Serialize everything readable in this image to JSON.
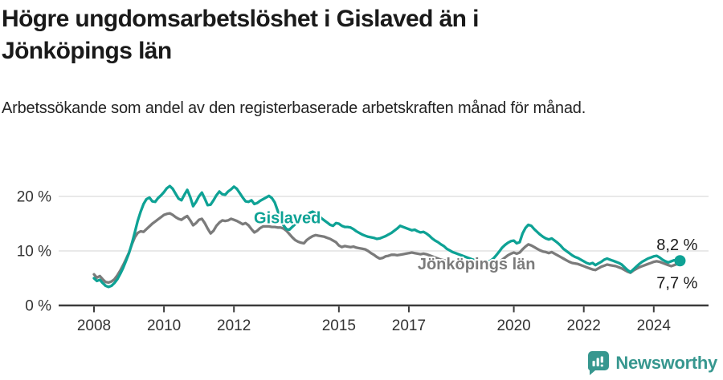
{
  "page": {
    "background": "#ffffff"
  },
  "header": {
    "title": "Högre ungdomsarbetslöshet i Gislaved än i Jönköpings län",
    "subtitle": "Arbetssökande som andel av den registerbaserade arbetskraften månad för månad."
  },
  "footer": {
    "brand": "Newsworthy",
    "logo_icon": "newsworthy-speech-bubble-bar-chart-icon",
    "color": "#37978f"
  },
  "chart_data": {
    "type": "line",
    "title": "",
    "x_start": "2008-01",
    "frequency": "monthly",
    "x_tick_years": [
      2008,
      2010,
      2012,
      2015,
      2017,
      2020,
      2022,
      2024
    ],
    "x_tick_labels": [
      "2008",
      "2010",
      "2012",
      "2015",
      "2017",
      "2020",
      "2022",
      "2024"
    ],
    "y_ticks": [
      {
        "value": 0,
        "label": "0 %"
      },
      {
        "value": 10,
        "label": "10 %"
      },
      {
        "value": 20,
        "label": "20 %"
      }
    ],
    "ylim": [
      0,
      24
    ],
    "grid": "horizontal",
    "grid_color": "#e2e2e2",
    "axis_color": "#3b3b3b",
    "tick_label_color": "#333333",
    "series": [
      {
        "name": "Jönköpings län",
        "color": "#7b7b7b",
        "end_dot": false,
        "values": [
          5.7,
          5.1,
          5.4,
          4.8,
          4.3,
          4.2,
          4.4,
          4.8,
          5.5,
          6.4,
          7.4,
          8.5,
          9.7,
          11.2,
          12.5,
          13.3,
          13.6,
          13.5,
          14.0,
          14.5,
          15.0,
          15.4,
          15.8,
          16.2,
          16.6,
          16.8,
          16.9,
          16.6,
          16.2,
          15.9,
          15.7,
          16.1,
          16.4,
          15.6,
          14.7,
          15.1,
          15.7,
          15.9,
          15.1,
          14.1,
          13.2,
          13.7,
          14.6,
          15.2,
          15.6,
          15.5,
          15.6,
          15.9,
          15.7,
          15.5,
          15.2,
          14.9,
          15.1,
          14.7,
          14.0,
          13.4,
          13.7,
          14.2,
          14.5,
          14.5,
          14.5,
          14.4,
          14.4,
          14.3,
          14.3,
          14.1,
          13.7,
          13.1,
          12.5,
          12.0,
          11.7,
          11.5,
          11.4,
          12.0,
          12.4,
          12.7,
          12.9,
          12.8,
          12.7,
          12.6,
          12.4,
          12.2,
          11.9,
          11.6,
          11.0,
          10.7,
          10.9,
          10.8,
          10.7,
          10.8,
          10.6,
          10.5,
          10.4,
          10.3,
          10.0,
          9.6,
          9.3,
          8.9,
          8.6,
          8.7,
          9.0,
          9.1,
          9.3,
          9.3,
          9.2,
          9.3,
          9.4,
          9.5,
          9.6,
          9.7,
          9.6,
          9.5,
          9.4,
          9.5,
          9.4,
          9.2,
          9.0,
          8.8,
          8.6,
          8.4,
          8.3,
          8.2,
          8.0,
          7.9,
          7.8,
          7.7,
          7.6,
          7.5,
          7.4,
          7.3,
          7.2,
          7.2,
          7.1,
          7.1,
          7.0,
          7.0,
          7.1,
          7.3,
          7.6,
          8.0,
          8.4,
          8.8,
          9.2,
          9.5,
          9.7,
          9.5,
          9.7,
          10.3,
          10.8,
          11.2,
          11.0,
          10.7,
          10.4,
          10.1,
          9.9,
          9.8,
          9.6,
          9.8,
          9.5,
          9.2,
          8.9,
          8.6,
          8.3,
          8.0,
          7.8,
          7.7,
          7.6,
          7.4,
          7.2,
          7.0,
          6.8,
          6.6,
          6.5,
          6.8,
          7.1,
          7.3,
          7.5,
          7.4,
          7.3,
          7.2,
          7.0,
          6.8,
          6.5,
          6.2,
          6.0,
          6.4,
          6.7,
          7.0,
          7.2,
          7.4,
          7.6,
          7.8,
          8.0,
          8.1,
          8.0,
          7.8,
          7.6,
          7.4,
          7.2,
          7.4,
          7.6,
          7.7
        ]
      },
      {
        "name": "Gislaved",
        "color": "#0ea295",
        "end_dot": true,
        "values": [
          5.0,
          4.5,
          4.7,
          4.1,
          3.6,
          3.4,
          3.6,
          4.1,
          4.8,
          5.8,
          6.9,
          8.2,
          9.6,
          11.4,
          13.4,
          15.5,
          17.2,
          18.6,
          19.5,
          19.8,
          19.1,
          19.0,
          19.7,
          20.2,
          20.8,
          21.5,
          21.9,
          21.4,
          20.5,
          19.6,
          19.3,
          20.3,
          21.2,
          19.9,
          18.2,
          19.0,
          20.0,
          20.7,
          19.6,
          18.4,
          18.5,
          19.3,
          20.2,
          20.9,
          20.4,
          20.3,
          20.9,
          21.3,
          21.8,
          21.4,
          20.6,
          19.8,
          19.1,
          19.0,
          19.3,
          18.6,
          18.8,
          19.2,
          19.5,
          19.8,
          20.1,
          19.7,
          18.9,
          17.4,
          15.9,
          14.7,
          14.0,
          13.9,
          14.4,
          14.9,
          15.3,
          15.7,
          16.0,
          16.6,
          17.0,
          17.2,
          16.9,
          16.5,
          16.0,
          15.6,
          15.2,
          14.8,
          14.6,
          15.1,
          15.0,
          14.6,
          14.4,
          14.4,
          14.3,
          14.0,
          13.6,
          13.3,
          13.0,
          12.8,
          12.6,
          12.5,
          12.4,
          12.2,
          12.3,
          12.5,
          12.7,
          13.0,
          13.3,
          13.7,
          14.1,
          14.6,
          14.4,
          14.2,
          14.0,
          13.8,
          13.9,
          13.6,
          13.4,
          13.5,
          13.2,
          12.8,
          12.3,
          11.9,
          11.6,
          11.2,
          10.9,
          10.4,
          10.1,
          9.8,
          9.6,
          9.4,
          9.2,
          9.0,
          8.8,
          8.6,
          8.4,
          8.3,
          8.2,
          8.1,
          8.0,
          8.0,
          8.2,
          8.6,
          9.2,
          9.9,
          10.6,
          11.1,
          11.5,
          11.8,
          11.9,
          11.4,
          11.6,
          13.2,
          14.2,
          14.8,
          14.6,
          14.0,
          13.5,
          13.0,
          12.6,
          12.3,
          12.1,
          12.3,
          11.9,
          11.5,
          11.0,
          10.4,
          10.0,
          9.6,
          9.2,
          8.9,
          8.7,
          8.4,
          8.1,
          7.8,
          7.6,
          7.8,
          7.4,
          7.7,
          8.0,
          8.4,
          8.6,
          8.4,
          8.2,
          8.0,
          7.8,
          7.5,
          7.0,
          6.5,
          6.1,
          6.6,
          7.1,
          7.6,
          8.0,
          8.3,
          8.6,
          8.8,
          9.0,
          9.1,
          8.8,
          8.4,
          8.1,
          7.9,
          8.1,
          8.3,
          8.1,
          8.2
        ]
      }
    ],
    "series_labels": [
      {
        "text": "Gislaved",
        "year": 2012.57,
        "value": 15.1,
        "color": "#0ea295"
      },
      {
        "text": "Jönköpings län",
        "year": 2017.25,
        "value": 6.6,
        "color": "#7b7b7b"
      }
    ],
    "end_labels": [
      {
        "text": "8,2 %",
        "series": "Gislaved",
        "position": "above"
      },
      {
        "text": "7,7 %",
        "series": "Jönköpings län",
        "position": "below"
      }
    ]
  }
}
